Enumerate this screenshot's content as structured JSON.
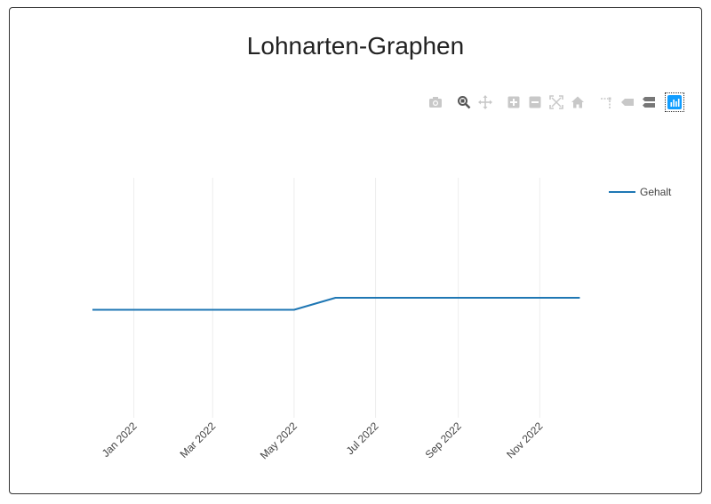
{
  "title": "Lohnarten-Graphen",
  "modebar": {
    "buttons": [
      {
        "name": "camera-icon",
        "active": false
      },
      {
        "name": "zoom-icon",
        "active": true
      },
      {
        "name": "pan-icon",
        "active": false
      },
      {
        "name": "zoom-in-icon",
        "active": false
      },
      {
        "name": "zoom-out-icon",
        "active": false
      },
      {
        "name": "autoscale-icon",
        "active": false
      },
      {
        "name": "home-icon",
        "active": false
      },
      {
        "name": "spike-lines-icon",
        "active": false
      },
      {
        "name": "hover-closest-icon",
        "active": false
      },
      {
        "name": "hover-compare-icon",
        "active": false
      }
    ],
    "logo_color": "#119dff"
  },
  "chart_data": {
    "type": "line",
    "title": "Lohnarten-Graphen",
    "x_type": "date",
    "xlim": [
      "2021-11-15",
      "2023-01-15"
    ],
    "x_ticks": [
      {
        "date": "2022-01-01",
        "label": "Jan 2022"
      },
      {
        "date": "2022-03-01",
        "label": "Mar 2022"
      },
      {
        "date": "2022-05-01",
        "label": "May 2022"
      },
      {
        "date": "2022-07-01",
        "label": "Jul 2022"
      },
      {
        "date": "2022-09-01",
        "label": "Sep 2022"
      },
      {
        "date": "2022-11-01",
        "label": "Nov 2022"
      }
    ],
    "ylim": [
      0,
      2
    ],
    "y_ticks_visible": false,
    "grid": {
      "x": true,
      "y": false
    },
    "legend_position": "top-right",
    "series": [
      {
        "name": "Gehalt",
        "color": "#1f77b4",
        "x": [
          "2021-12-01",
          "2022-01-01",
          "2022-02-01",
          "2022-03-01",
          "2022-04-01",
          "2022-05-01",
          "2022-06-01",
          "2022-07-01",
          "2022-08-01",
          "2022-09-01",
          "2022-10-01",
          "2022-11-01",
          "2022-12-01"
        ],
        "y": [
          0.9,
          0.9,
          0.9,
          0.9,
          0.9,
          0.9,
          1.0,
          1.0,
          1.0,
          1.0,
          1.0,
          1.0,
          1.0
        ]
      }
    ]
  }
}
